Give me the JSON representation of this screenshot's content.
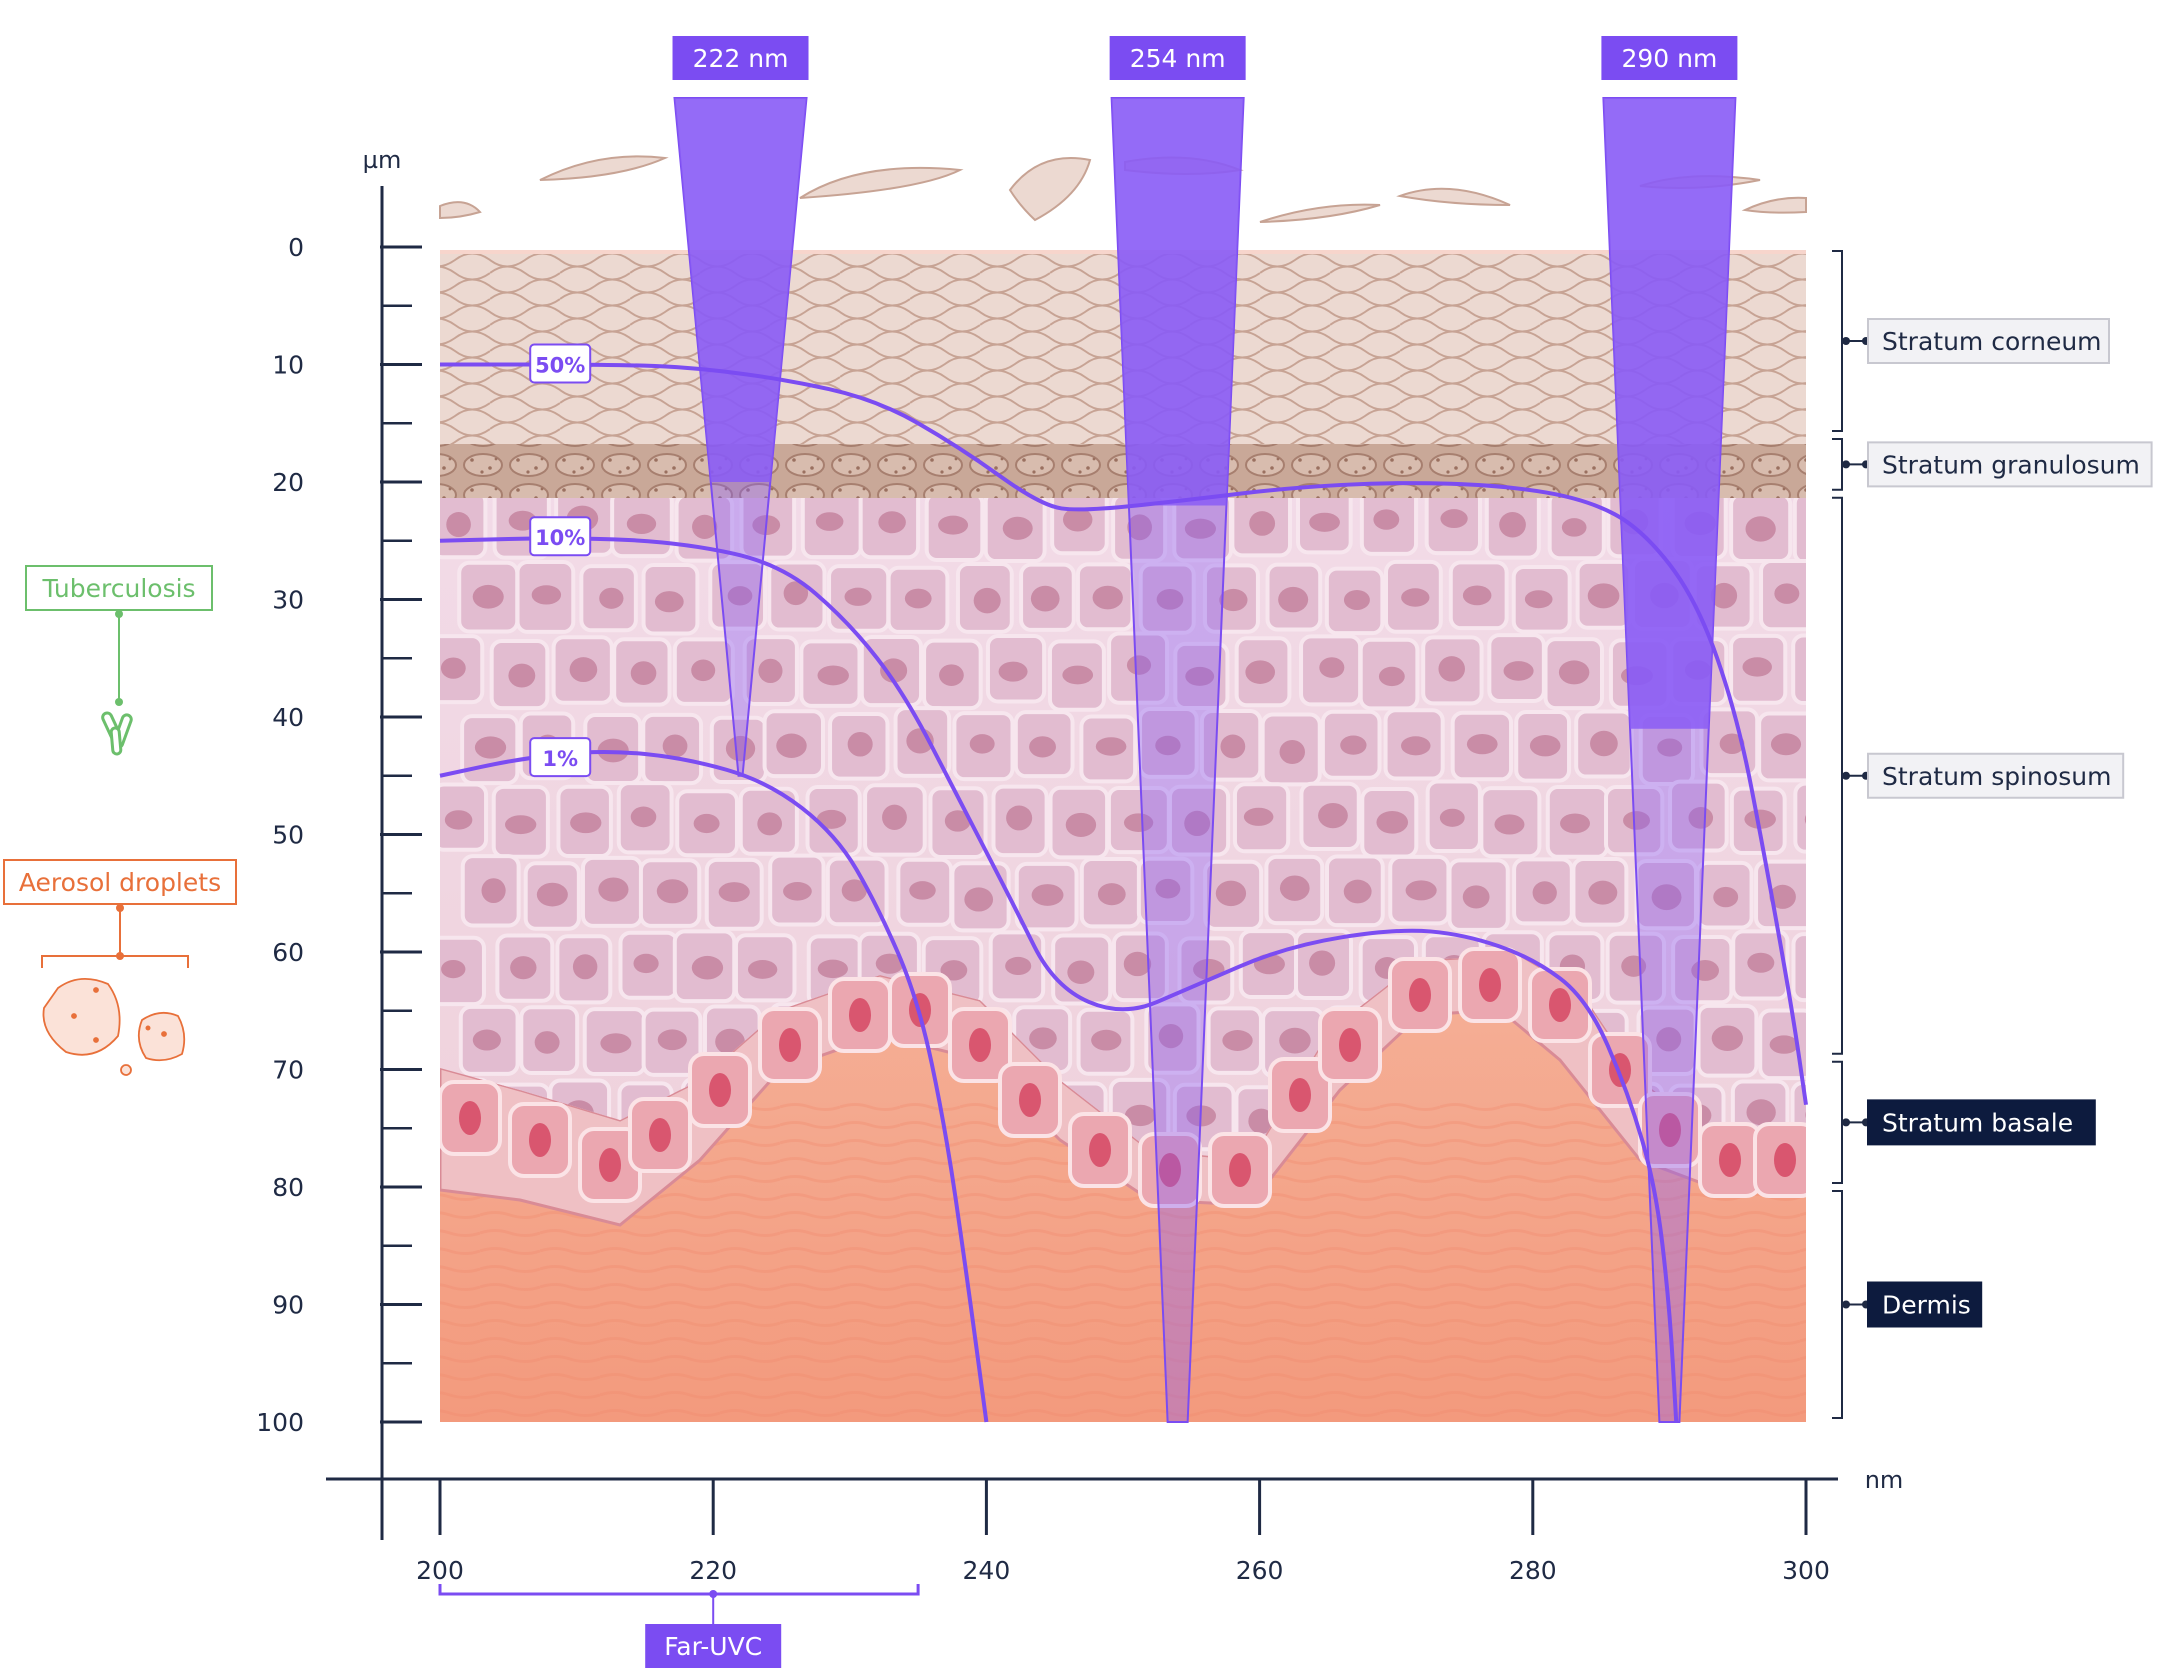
{
  "axes": {
    "y_unit": "µm",
    "x_unit": "nm",
    "y_ticks": [
      "0",
      "10",
      "20",
      "30",
      "40",
      "50",
      "60",
      "70",
      "80",
      "90",
      "100"
    ],
    "x_ticks": [
      "200",
      "220",
      "240",
      "260",
      "280",
      "300"
    ],
    "y_range": [
      0,
      100
    ],
    "x_range": [
      200,
      300
    ]
  },
  "wavelength_beams": [
    {
      "label": "222 nm",
      "nm": 222,
      "bottom_depth_um": 45
    },
    {
      "label": "254 nm",
      "nm": 254,
      "bottom_depth_um": 100
    },
    {
      "label": "290 nm",
      "nm": 290,
      "bottom_depth_um": 100
    }
  ],
  "transmission_curves": [
    {
      "label": "50%",
      "points": [
        [
          200,
          10
        ],
        [
          212,
          10
        ],
        [
          218,
          10.2
        ],
        [
          225,
          11.2
        ],
        [
          232,
          13
        ],
        [
          238,
          17
        ],
        [
          244,
          22
        ],
        [
          247,
          22.5
        ],
        [
          255,
          21.5
        ],
        [
          262,
          20.5
        ],
        [
          270,
          20
        ],
        [
          278,
          20.3
        ],
        [
          284,
          21.5
        ],
        [
          288,
          24
        ],
        [
          292,
          30
        ],
        [
          295,
          40
        ],
        [
          297,
          52
        ],
        [
          299,
          65
        ],
        [
          300,
          73
        ]
      ]
    },
    {
      "label": "10%",
      "points": [
        [
          200,
          25
        ],
        [
          210,
          24.7
        ],
        [
          218,
          25.2
        ],
        [
          225,
          27
        ],
        [
          230,
          32
        ],
        [
          234,
          38
        ],
        [
          238,
          47
        ],
        [
          242,
          56
        ],
        [
          245,
          63
        ],
        [
          250,
          65.5
        ],
        [
          255,
          63
        ],
        [
          262,
          59.5
        ],
        [
          270,
          58
        ],
        [
          275,
          58.5
        ],
        [
          280,
          60.5
        ],
        [
          284,
          64
        ],
        [
          287,
          72
        ],
        [
          289,
          80
        ],
        [
          290,
          90
        ],
        [
          290.5,
          100
        ]
      ]
    },
    {
      "label": "1%",
      "points": [
        [
          200,
          45
        ],
        [
          206,
          43.5
        ],
        [
          212,
          42.8
        ],
        [
          218,
          43.5
        ],
        [
          224,
          45.5
        ],
        [
          229,
          50
        ],
        [
          232,
          56
        ],
        [
          235,
          64
        ],
        [
          237,
          75
        ],
        [
          238.5,
          87
        ],
        [
          240,
          100
        ]
      ]
    }
  ],
  "layer_labels": [
    {
      "label": "Stratum corneum",
      "top_um": 0,
      "bottom_um": 16,
      "style": "light"
    },
    {
      "label": "Stratum granulosum",
      "top_um": 16,
      "bottom_um": 21,
      "style": "light"
    },
    {
      "label": "Stratum spinosum",
      "top_um": 21,
      "bottom_um": 69,
      "style": "light"
    },
    {
      "label": "Stratum basale",
      "top_um": 69,
      "bottom_um": 80,
      "style": "dark"
    },
    {
      "label": "Dermis",
      "top_um": 80,
      "bottom_um": 100,
      "style": "dark"
    }
  ],
  "far_uvc": {
    "label": "Far-UVC",
    "from_nm": 200,
    "to_nm": 235
  },
  "legend": {
    "tuberculosis": "Tuberculosis",
    "aerosol": "Aerosol droplets"
  },
  "colors": {
    "uv": "#7b4cf2",
    "uv_fill": "#8a5cf6",
    "tb": "#6cbf6c",
    "aerosol": "#e8703a",
    "dark_label": "#0d1b3e",
    "axis": "#1f2a44"
  }
}
